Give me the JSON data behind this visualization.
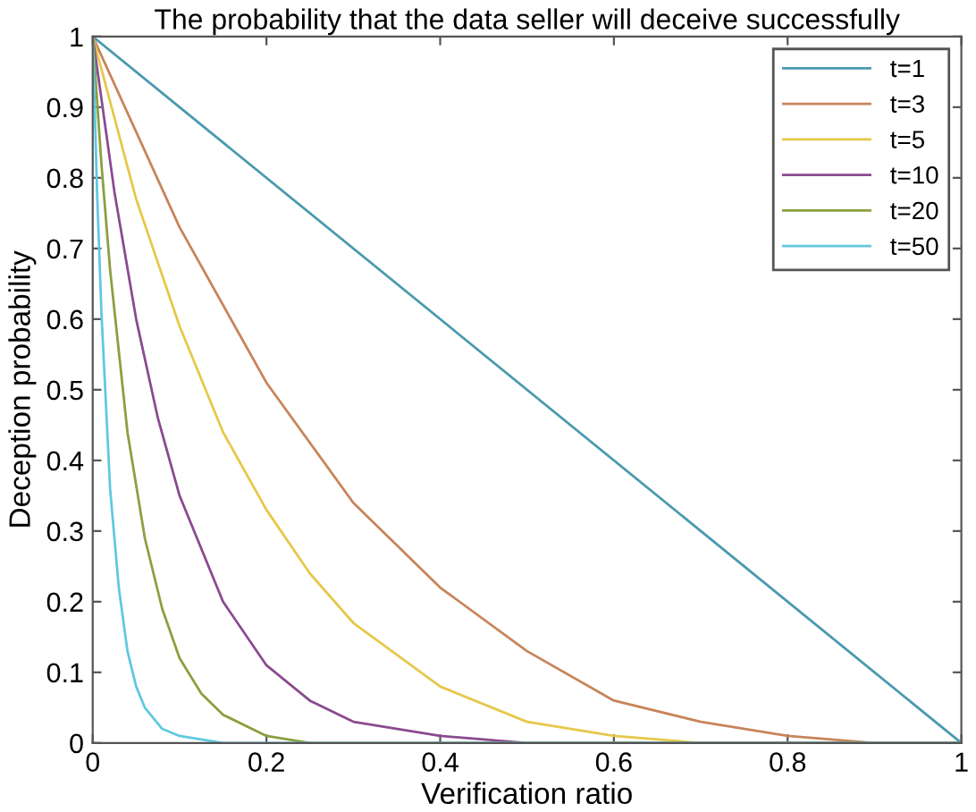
{
  "chart_data": {
    "type": "line",
    "title": "The probability that the data seller will deceive successfully",
    "xlabel": "Verification ratio",
    "ylabel": "Deception probability",
    "xlim": [
      0,
      1
    ],
    "ylim": [
      0,
      1
    ],
    "xticks": [
      0,
      0.2,
      0.4,
      0.6,
      0.8,
      1
    ],
    "yticks": [
      0,
      0.1,
      0.2,
      0.3,
      0.4,
      0.5,
      0.6,
      0.7,
      0.8,
      0.9,
      1
    ],
    "grid": false,
    "legend": "top right",
    "marker": "none",
    "line_style": "solid",
    "series": [
      {
        "name": "t=1",
        "color": "#4a9ab0",
        "x": [
          0,
          1
        ],
        "values": [
          1,
          0
        ]
      },
      {
        "name": "t=3",
        "color": "#c8845a",
        "x": [
          0,
          0.1,
          0.2,
          0.3,
          0.4,
          0.5,
          0.6,
          0.7,
          0.8,
          0.9,
          1
        ],
        "values": [
          1,
          0.73,
          0.51,
          0.34,
          0.22,
          0.13,
          0.06,
          0.03,
          0.01,
          0,
          0
        ]
      },
      {
        "name": "t=5",
        "color": "#e6c84a",
        "x": [
          0,
          0.05,
          0.1,
          0.15,
          0.2,
          0.25,
          0.3,
          0.4,
          0.5,
          0.6,
          0.7,
          1
        ],
        "values": [
          1,
          0.77,
          0.59,
          0.44,
          0.33,
          0.24,
          0.17,
          0.08,
          0.03,
          0.01,
          0,
          0
        ]
      },
      {
        "name": "t=10",
        "color": "#8a4a90",
        "x": [
          0,
          0.025,
          0.05,
          0.075,
          0.1,
          0.15,
          0.2,
          0.25,
          0.3,
          0.4,
          0.5,
          1
        ],
        "values": [
          1,
          0.78,
          0.6,
          0.46,
          0.35,
          0.2,
          0.11,
          0.06,
          0.03,
          0.01,
          0,
          0
        ]
      },
      {
        "name": "t=20",
        "color": "#8aa040",
        "x": [
          0,
          0.01,
          0.02,
          0.04,
          0.06,
          0.08,
          0.1,
          0.125,
          0.15,
          0.2,
          0.25,
          0.3,
          1
        ],
        "values": [
          1,
          0.82,
          0.67,
          0.44,
          0.29,
          0.19,
          0.12,
          0.07,
          0.04,
          0.01,
          0,
          0,
          0
        ]
      },
      {
        "name": "t=50",
        "color": "#60c8e0",
        "x": [
          0,
          0.005,
          0.01,
          0.02,
          0.03,
          0.04,
          0.05,
          0.06,
          0.08,
          0.1,
          0.15,
          1
        ],
        "values": [
          1,
          0.78,
          0.61,
          0.36,
          0.22,
          0.13,
          0.08,
          0.05,
          0.02,
          0.01,
          0,
          0
        ]
      }
    ]
  }
}
